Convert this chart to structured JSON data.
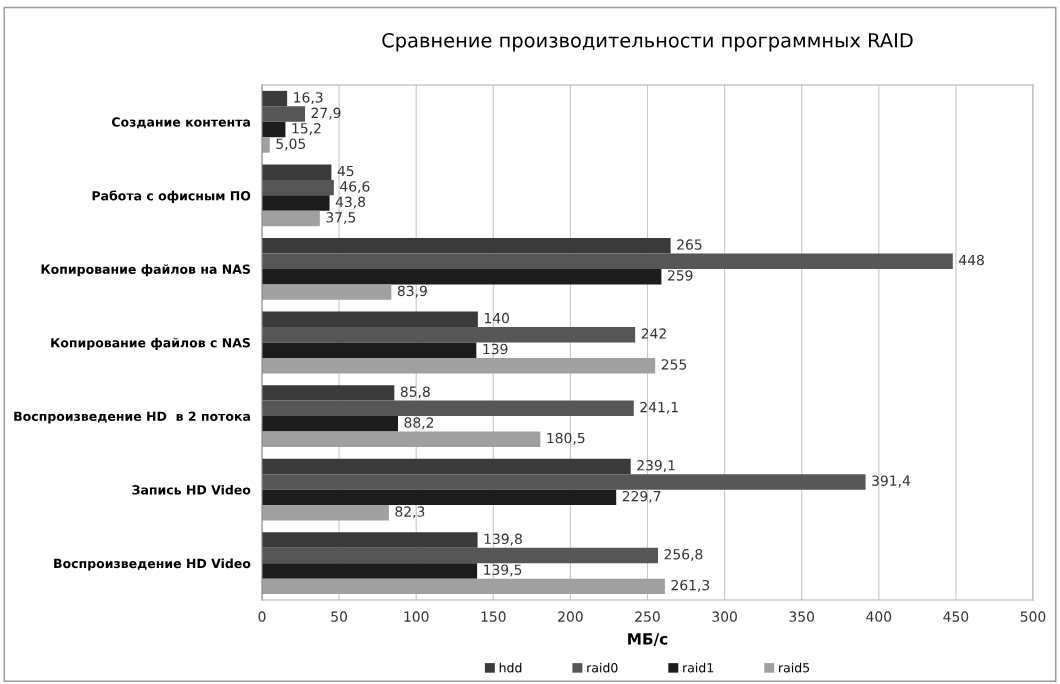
{
  "chart_data": {
    "type": "bar",
    "orientation": "horizontal",
    "title": "Сравнение производительности программных RAID",
    "xlabel": "МБ/с",
    "categories": [
      "Создание контента",
      "Работа с офисным ПО",
      "Копирование файлов на NAS",
      "Копирование файлов с NAS",
      "Воспроизведение HD  в 2 потока",
      "Запись HD Video",
      "Воспроизведение HD Video"
    ],
    "series": [
      {
        "name": "hdd",
        "color": "#3a3a3a",
        "values": [
          16.3,
          45,
          265,
          140,
          85.8,
          239.1,
          139.8
        ],
        "value_labels": [
          "16,3",
          "45",
          "265",
          "140",
          "85,8",
          "239,1",
          "139,8"
        ]
      },
      {
        "name": "raid0",
        "color": "#565656",
        "values": [
          27.9,
          46.6,
          448,
          242,
          241.1,
          391.4,
          256.8
        ],
        "value_labels": [
          "27,9",
          "46,6",
          "448",
          "242",
          "241,1",
          "391,4",
          "256,8"
        ]
      },
      {
        "name": "raid1",
        "color": "#1c1c1c",
        "values": [
          15.2,
          43.8,
          259,
          139,
          88.2,
          229.7,
          139.5
        ],
        "value_labels": [
          "15,2",
          "43,8",
          "259",
          "139",
          "88,2",
          "229,7",
          "139,5"
        ]
      },
      {
        "name": "raid5",
        "color": "#a0a0a0",
        "values": [
          5.05,
          37.5,
          83.9,
          255,
          180.5,
          82.3,
          261.3
        ],
        "value_labels": [
          "5,05",
          "37,5",
          "83,9",
          "255",
          "180,5",
          "82,3",
          "261,3"
        ]
      }
    ],
    "xlim": [
      0,
      500
    ],
    "xticks": [
      0,
      50,
      100,
      150,
      200,
      250,
      300,
      350,
      400,
      450,
      500
    ],
    "grid": "x",
    "legend": "bottom"
  }
}
